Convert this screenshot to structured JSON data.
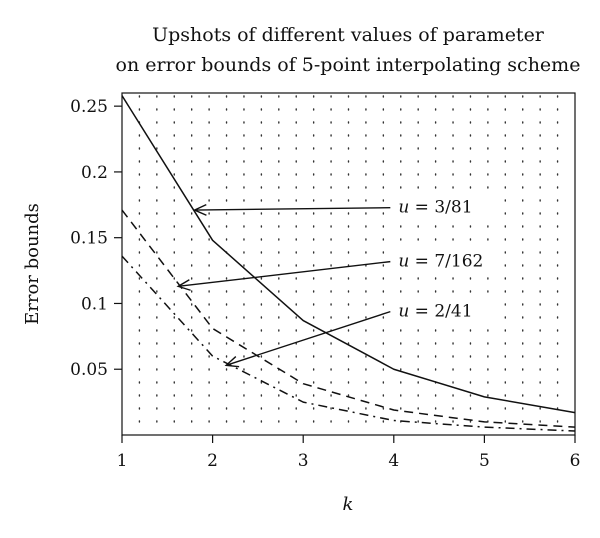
{
  "chart_data": {
    "type": "line",
    "title": [
      "Upshots of different values of parameter",
      "on error bounds of 5-point interpolating scheme"
    ],
    "xlabel": "k",
    "ylabel": "Error bounds",
    "x": [
      1,
      2,
      3,
      4,
      5,
      6
    ],
    "xlim": [
      1,
      6
    ],
    "ylim": [
      0,
      0.26
    ],
    "xticks": [
      "1",
      "2",
      "3",
      "4",
      "5",
      "6"
    ],
    "yticks": [
      {
        "value": 0.05,
        "label": "0.05"
      },
      {
        "value": 0.1,
        "label": "0.1"
      },
      {
        "value": 0.15,
        "label": "0.15"
      },
      {
        "value": 0.2,
        "label": "0.2"
      },
      {
        "value": 0.25,
        "label": "0.25"
      }
    ],
    "grid": "dotted",
    "series": [
      {
        "name": "u = 3/81",
        "style": "solid",
        "values": [
          0.258,
          0.148,
          0.087,
          0.05,
          0.029,
          0.017
        ]
      },
      {
        "name": "u = 7/162",
        "style": "dashed",
        "values": [
          0.171,
          0.081,
          0.039,
          0.019,
          0.01,
          0.006
        ]
      },
      {
        "name": "u = 2/41",
        "style": "dashdot",
        "values": [
          0.136,
          0.06,
          0.025,
          0.011,
          0.006,
          0.003
        ]
      }
    ],
    "annotations": [
      {
        "var": "u",
        "rest": " = 3/81",
        "text_at": [
          4.05,
          0.169
        ],
        "arrow_to": [
          1.8,
          0.171
        ],
        "series": 0
      },
      {
        "var": "u",
        "rest": " = 7/162",
        "text_at": [
          4.05,
          0.128
        ],
        "arrow_to": [
          1.62,
          0.113
        ],
        "series": 1
      },
      {
        "var": "u",
        "rest": " = 2/41",
        "text_at": [
          4.05,
          0.09
        ],
        "arrow_to": [
          2.15,
          0.053
        ],
        "series": 2
      }
    ]
  }
}
